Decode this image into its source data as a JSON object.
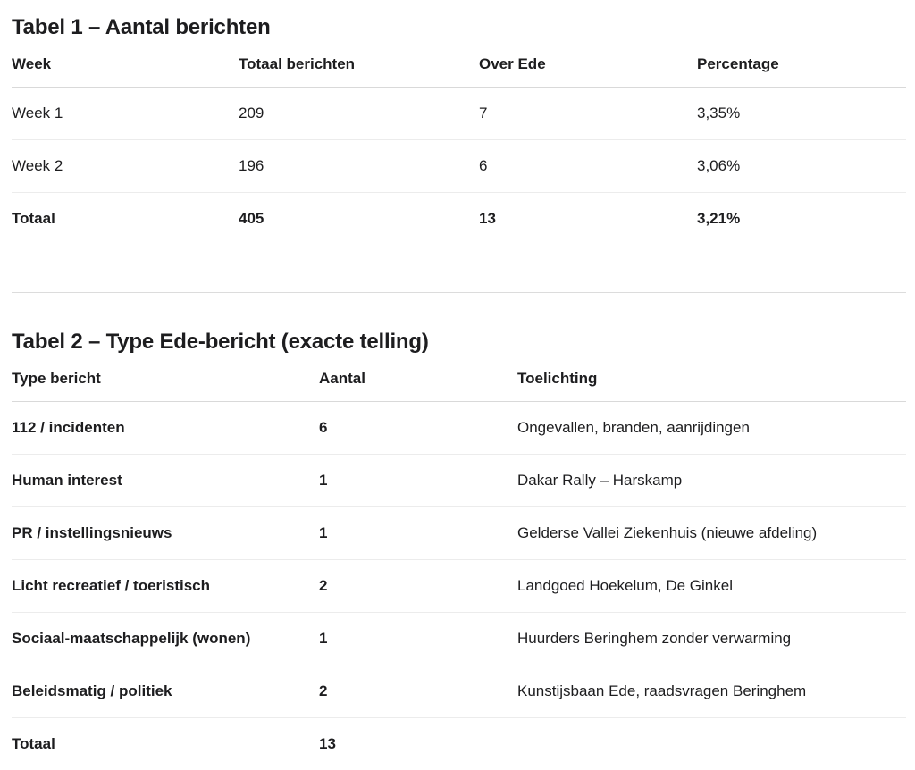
{
  "table1": {
    "title": "Tabel 1 – Aantal berichten",
    "headers": [
      "Week",
      "Totaal berichten",
      "Over Ede",
      "Percentage"
    ],
    "rows": [
      [
        "Week 1",
        "209",
        "7",
        "3,35%"
      ],
      [
        "Week 2",
        "196",
        "6",
        "3,06%"
      ]
    ],
    "total": [
      "Totaal",
      "405",
      "13",
      "3,21%"
    ]
  },
  "table2": {
    "title": "Tabel 2 – Type Ede-bericht (exacte telling)",
    "headers": [
      "Type bericht",
      "Aantal",
      "Toelichting"
    ],
    "rows": [
      [
        "112 / incidenten",
        "6",
        "Ongevallen, branden, aanrijdingen"
      ],
      [
        "Human interest",
        "1",
        "Dakar Rally – Harskamp"
      ],
      [
        "PR / instellingsnieuws",
        "1",
        "Gelderse Vallei Ziekenhuis (nieuwe afdeling)"
      ],
      [
        "Licht recreatief / toeristisch",
        "2",
        "Landgoed Hoekelum, De Ginkel"
      ],
      [
        "Sociaal-maatschappelijk (wonen)",
        "1",
        "Huurders Beringhem zonder verwarming"
      ],
      [
        "Beleidsmatig / politiek",
        "2",
        "Kunstijsbaan Ede, raadsvragen Beringhem"
      ]
    ],
    "total": [
      "Totaal",
      "13",
      ""
    ]
  }
}
